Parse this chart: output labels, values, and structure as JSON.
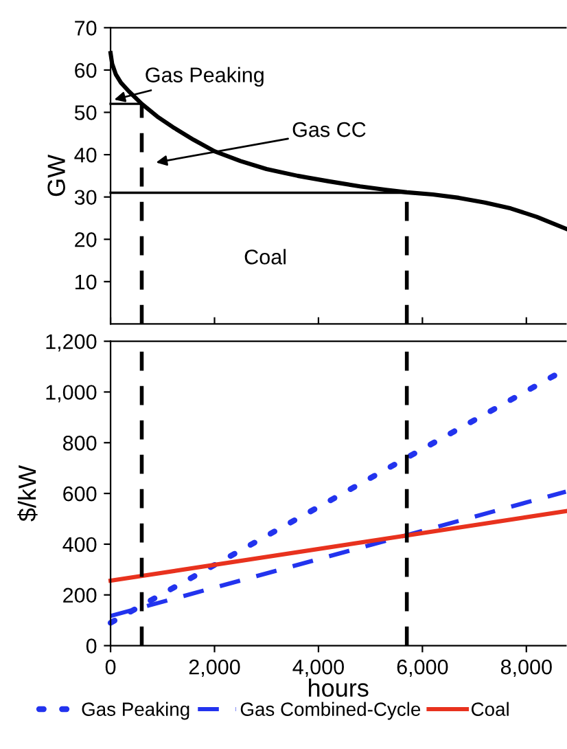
{
  "chart_data": [
    {
      "type": "line",
      "ylabel": "GW",
      "xlim": [
        0,
        8760
      ],
      "xticks": [
        0,
        2000,
        4000,
        6000,
        8000
      ],
      "ylim": [
        0,
        70
      ],
      "yticks": [
        10,
        20,
        30,
        40,
        50,
        60,
        70
      ],
      "tick_labels": "y",
      "grid": false,
      "legend": false,
      "series": [
        {
          "color": "#000000",
          "line_style": "solid",
          "x": [
            0,
            30,
            100,
            200,
            350,
            600,
            900,
            1200,
            1600,
            2000,
            2500,
            3000,
            3600,
            4200,
            4800,
            5300,
            5700,
            6200,
            6700,
            7200,
            7700,
            8200,
            8760
          ],
          "values": [
            64,
            61.5,
            59,
            57,
            55,
            52,
            49,
            46.5,
            43.5,
            40.8,
            38.5,
            36.6,
            35,
            33.7,
            32.5,
            31.7,
            31.1,
            30.6,
            29.8,
            28.7,
            27.3,
            25.3,
            22.5
          ]
        },
        {
          "color": "#000000",
          "line_style": "solid",
          "x": [
            0,
            600
          ],
          "values": [
            52,
            52
          ]
        },
        {
          "color": "#000000",
          "line_style": "solid",
          "x": [
            0,
            5700
          ],
          "values": [
            31,
            31
          ]
        },
        {
          "color": "#000000",
          "line_style": "dashed",
          "x": [
            600,
            600
          ],
          "values": [
            0,
            52
          ]
        },
        {
          "color": "#000000",
          "line_style": "dashed",
          "x": [
            5700,
            5700
          ],
          "values": [
            0,
            31
          ]
        }
      ],
      "annotations": [
        {
          "text": "Gas Peaking",
          "x": 70,
          "y": 53
        },
        "Gas CC",
        "Coal"
      ]
    },
    {
      "type": "line",
      "ylabel": "$/kW",
      "xlabel": "hours",
      "xlim": [
        0,
        8760
      ],
      "xticks": [
        0,
        {
          "value": 2000,
          "label": "2,000"
        },
        {
          "value": 4000,
          "label": "4,000"
        },
        {
          "value": 6000,
          "label": "6,000"
        },
        {
          "value": 8000,
          "label": "8,000"
        }
      ],
      "ylim": [
        0,
        1200
      ],
      "yticks": [
        0,
        200,
        400,
        600,
        800,
        {
          "value": 1000,
          "label": "1,000"
        },
        {
          "value": 1200,
          "label": "1,200"
        }
      ],
      "grid": false,
      "legend": "bottom",
      "series": [
        {
          "name": "Gas Peaking",
          "color": "#2233ee",
          "line_style": "dotted",
          "x": [
            0,
            8760
          ],
          "values": [
            90,
            1090
          ]
        },
        {
          "name": "Gas Combined-Cycle",
          "color": "#2233ee",
          "line_style": "dashed",
          "x": [
            0,
            8760
          ],
          "values": [
            117,
            607
          ]
        },
        {
          "name": "Coal",
          "color": "#e8321e",
          "line_style": "solid",
          "x": [
            0,
            8760
          ],
          "values": [
            256,
            530
          ]
        }
      ],
      "ref_lines": [
        {
          "axis": "x",
          "value": 600,
          "color": "#000000",
          "line_style": "dashed"
        },
        {
          "axis": "x",
          "value": 5700,
          "color": "#000000",
          "line_style": "dashed"
        }
      ]
    }
  ]
}
